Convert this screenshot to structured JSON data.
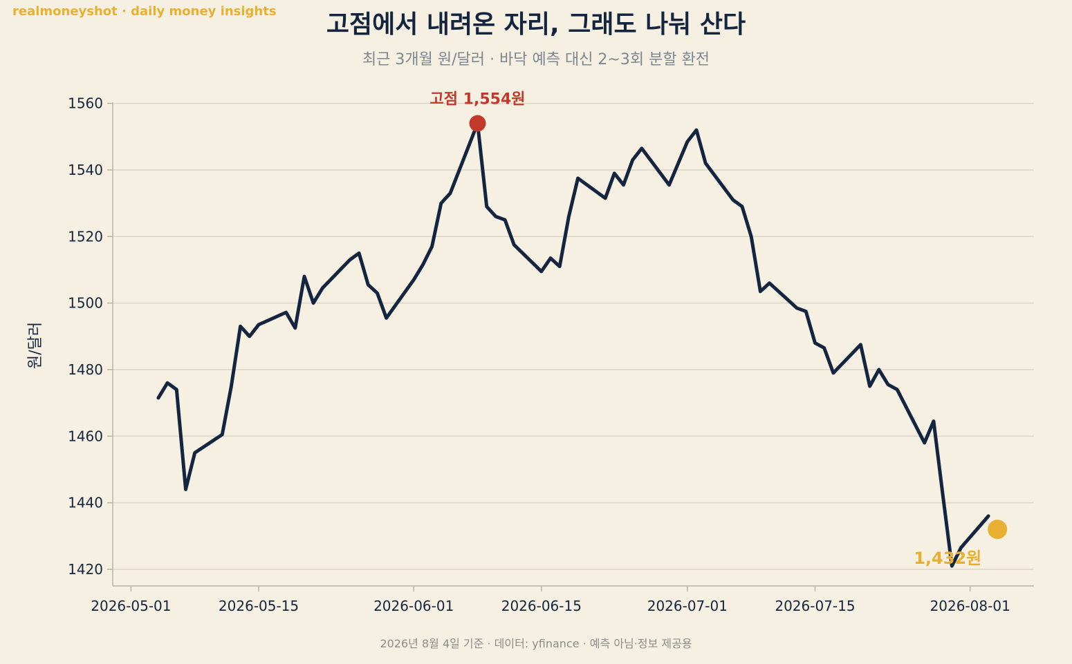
{
  "brand": "realmoneyshot · daily money insights",
  "footer": "2026년 8월 4일 기준 · 데이터: yfinance · 예측 아님·정보 제공용",
  "colors": {
    "background": "#f5f0e1",
    "line": "#14253f",
    "peak": "#c0392b",
    "last": "#e8b032",
    "grid": "#dcd6c6"
  },
  "chart_data": {
    "type": "line",
    "title": "고점에서 내려온 자리, 그래도 나눠 산다",
    "subtitle": "최근 3개월 원/달러 · 바닥 예측 대신 2~3회 분할 환전",
    "ylabel": "원/달러",
    "xlabel": "",
    "ylim": [
      1415,
      1562
    ],
    "xlim": [
      "2026-04-29",
      "2026-08-08"
    ],
    "grid": "horizontal",
    "y_ticks": [
      1420,
      1440,
      1460,
      1480,
      1500,
      1520,
      1540,
      1560
    ],
    "x_ticks": [
      "2026-05-01",
      "2026-05-15",
      "2026-06-01",
      "2026-06-15",
      "2026-07-01",
      "2026-07-15",
      "2026-08-01"
    ],
    "series": [
      {
        "x": [
          "2026-05-04",
          "2026-05-05",
          "2026-05-06",
          "2026-05-07",
          "2026-05-08",
          "2026-05-11",
          "2026-05-12",
          "2026-05-13",
          "2026-05-14",
          "2026-05-15",
          "2026-05-18",
          "2026-05-19",
          "2026-05-20",
          "2026-05-21",
          "2026-05-22",
          "2026-05-25",
          "2026-05-26",
          "2026-05-27",
          "2026-05-28",
          "2026-05-29",
          "2026-06-01",
          "2026-06-02",
          "2026-06-03",
          "2026-06-04",
          "2026-06-05",
          "2026-06-08",
          "2026-06-09",
          "2026-06-10",
          "2026-06-11",
          "2026-06-12",
          "2026-06-15",
          "2026-06-16",
          "2026-06-17",
          "2026-06-18",
          "2026-06-19",
          "2026-06-22",
          "2026-06-23",
          "2026-06-24",
          "2026-06-25",
          "2026-06-26",
          "2026-06-29",
          "2026-06-30",
          "2026-07-01",
          "2026-07-02",
          "2026-07-03",
          "2026-07-06",
          "2026-07-07",
          "2026-07-08",
          "2026-07-09",
          "2026-07-10",
          "2026-07-13",
          "2026-07-14",
          "2026-07-15",
          "2026-07-16",
          "2026-07-17",
          "2026-07-20",
          "2026-07-21",
          "2026-07-22",
          "2026-07-23",
          "2026-07-24",
          "2026-07-27",
          "2026-07-28",
          "2026-07-29",
          "2026-07-30",
          "2026-07-31",
          "2026-08-03"
        ],
        "y": [
          1471.5,
          1476,
          1474,
          1444,
          1455,
          1460.5,
          1475,
          1493,
          1490,
          1493.5,
          1497.2,
          1492.5,
          1508,
          1500,
          1504.5,
          1513,
          1515,
          1505.5,
          1503,
          1495.5,
          1507,
          1511.5,
          1517,
          1530,
          1533,
          1554,
          1529,
          1526,
          1525,
          1517.5,
          1509.5,
          1513.5,
          1511,
          1526,
          1537.5,
          1531.5,
          1539,
          1535.5,
          1543,
          1546.5,
          1535.5,
          1542,
          1548.5,
          1552,
          1542,
          1531,
          1529,
          1520,
          1503.5,
          1506,
          1498.5,
          1497.5,
          1488,
          1486.5,
          1479,
          1487.5,
          1475,
          1480,
          1475.5,
          1474,
          1458,
          1464.5,
          1442.5,
          1421,
          1426.5,
          1436
        ]
      }
    ],
    "highlight_points": [
      {
        "x": "2026-06-08",
        "y": 1554,
        "label": "고점 1,554원"
      },
      {
        "x": "2026-08-04",
        "y": 1432,
        "label": "1,432원"
      }
    ]
  }
}
